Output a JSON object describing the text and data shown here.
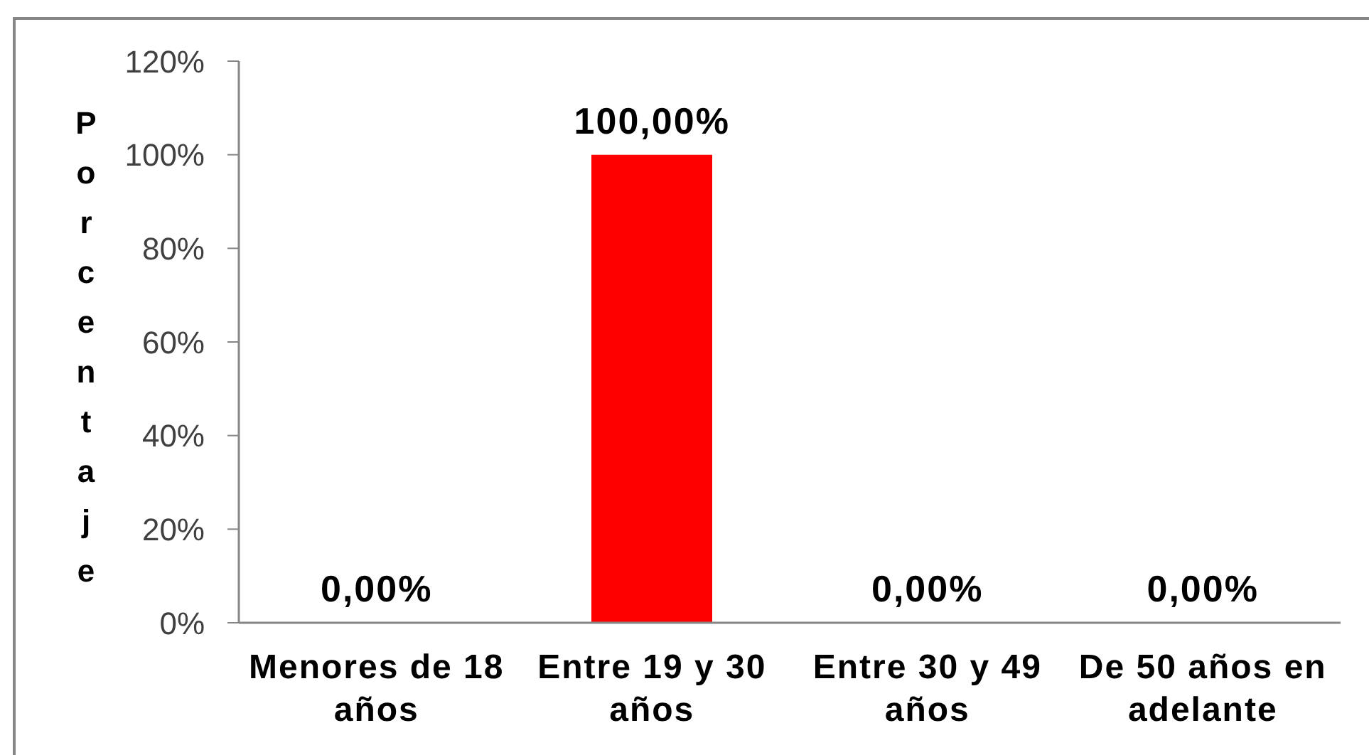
{
  "chart_data": {
    "type": "bar",
    "ylabel": "Porcentaje",
    "categories": [
      "Menores de 18 años",
      "Entre 19 y 30 años",
      "Entre 30 y 49 años",
      "De 50 años en adelante"
    ],
    "values": [
      0,
      100,
      0,
      0
    ],
    "color": "#ff0000",
    "value_labels": [
      "0,00%",
      "100,00%",
      "0,00%",
      "0,00%"
    ],
    "ylim": [
      0,
      120
    ],
    "yticks": [
      {
        "value": 0,
        "label": "0%"
      },
      {
        "value": 20,
        "label": "20%"
      },
      {
        "value": 40,
        "label": "40%"
      },
      {
        "value": 60,
        "label": "60%"
      },
      {
        "value": 80,
        "label": "80%"
      },
      {
        "value": 100,
        "label": "100%"
      },
      {
        "value": 120,
        "label": "120%"
      }
    ]
  }
}
